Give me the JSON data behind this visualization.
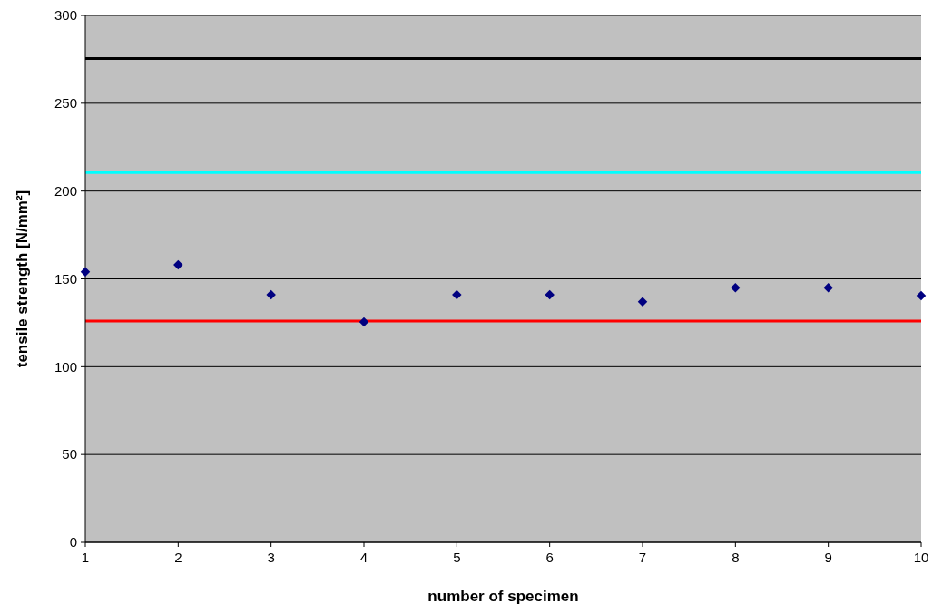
{
  "chart_data": {
    "type": "scatter",
    "xlabel": "number of specimen",
    "ylabel": "tensile strength [N/mm²]",
    "x": [
      1,
      2,
      3,
      4,
      5,
      6,
      7,
      8,
      9,
      10
    ],
    "series": [
      {
        "color": "#000080",
        "values": [
          154,
          158,
          141,
          125.5,
          141,
          141,
          137,
          145,
          145,
          140.5
        ]
      }
    ],
    "xlim": [
      1,
      10
    ],
    "xticks": [
      1,
      2,
      3,
      4,
      5,
      6,
      7,
      8,
      9,
      10
    ],
    "ylim": [
      0,
      300
    ],
    "yticks": [
      0,
      50,
      100,
      150,
      200,
      250,
      300
    ],
    "grid": "y",
    "marker": "diamond",
    "ref_lines": [
      {
        "axis": "y",
        "value": 275.5,
        "color": "#000000"
      },
      {
        "axis": "y",
        "value": 210.5,
        "color": "#00ffff"
      },
      {
        "axis": "y",
        "value": 126,
        "color": "#ff0000"
      }
    ]
  }
}
